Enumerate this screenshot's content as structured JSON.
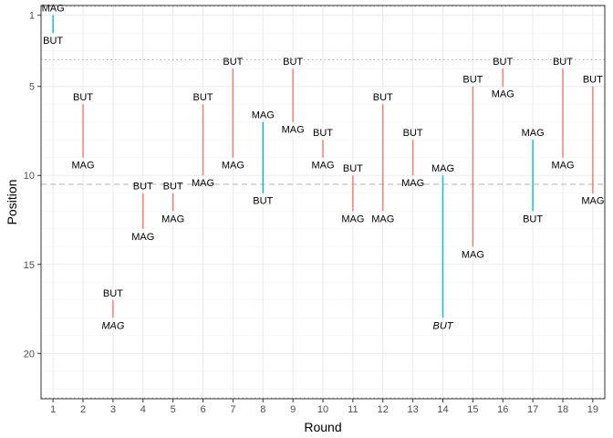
{
  "chart_data": {
    "type": "segment",
    "xlabel": "Round",
    "ylabel": "Position",
    "x_ticks": [
      "1",
      "2",
      "3",
      "4",
      "5",
      "6",
      "7",
      "8",
      "9",
      "10",
      "11",
      "12",
      "13",
      "14",
      "15",
      "16",
      "17",
      "18",
      "19"
    ],
    "y_ticks": [
      "1",
      "5",
      "10",
      "15",
      "20"
    ],
    "xlim": [
      0.6,
      19.4
    ],
    "ylim_reversed": [
      0.45,
      22.55
    ],
    "grid": true,
    "reference_lines": [
      {
        "y": 0.5,
        "style": "dotted"
      },
      {
        "y": 3.5,
        "style": "dotted"
      },
      {
        "y": 10.5,
        "style": "dashed"
      },
      {
        "y": 22.5,
        "style": "dotted"
      }
    ],
    "colors": {
      "red": "#F8766D",
      "teal": "#00BFC4"
    },
    "rounds": [
      {
        "round": 1,
        "but": 2,
        "mag": 1,
        "but_label": "BUT",
        "mag_label": "MAG",
        "color": "teal",
        "top": "mag"
      },
      {
        "round": 2,
        "but": 6,
        "mag": 9,
        "but_label": "BUT",
        "mag_label": "MAG",
        "color": "red",
        "top": "but"
      },
      {
        "round": 3,
        "but": 17,
        "mag": 18,
        "but_label": "BUT",
        "mag_label": "MAG",
        "color": "red",
        "top": "but",
        "mag_italic": true
      },
      {
        "round": 4,
        "but": 11,
        "mag": 13,
        "but_label": "BUT",
        "mag_label": "MAG",
        "color": "red",
        "top": "but"
      },
      {
        "round": 5,
        "but": 11,
        "mag": 12,
        "but_label": "BUT",
        "mag_label": "MAG",
        "color": "red",
        "top": "but"
      },
      {
        "round": 6,
        "but": 6,
        "mag": 10,
        "but_label": "BUT",
        "mag_label": "MAG",
        "color": "red",
        "top": "but"
      },
      {
        "round": 7,
        "but": 4,
        "mag": 9,
        "but_label": "BUT",
        "mag_label": "MAG",
        "color": "red",
        "top": "but"
      },
      {
        "round": 8,
        "but": 11,
        "mag": 7,
        "but_label": "BUT",
        "mag_label": "MAG",
        "color": "teal",
        "top": "mag"
      },
      {
        "round": 9,
        "but": 4,
        "mag": 7,
        "but_label": "BUT",
        "mag_label": "MAG",
        "color": "red",
        "top": "but"
      },
      {
        "round": 10,
        "but": 8,
        "mag": 9,
        "but_label": "BUT",
        "mag_label": "MAG",
        "color": "red",
        "top": "but"
      },
      {
        "round": 11,
        "but": 10,
        "mag": 12,
        "but_label": "BUT",
        "mag_label": "MAG",
        "color": "red",
        "top": "but"
      },
      {
        "round": 12,
        "but": 6,
        "mag": 12,
        "but_label": "BUT",
        "mag_label": "MAG",
        "color": "red",
        "top": "but"
      },
      {
        "round": 13,
        "but": 8,
        "mag": 10,
        "but_label": "BUT",
        "mag_label": "MAG",
        "color": "red",
        "top": "but"
      },
      {
        "round": 14,
        "but": 18,
        "mag": 10,
        "but_label": "BUT",
        "mag_label": "MAG",
        "color": "teal",
        "top": "mag",
        "but_italic": true
      },
      {
        "round": 15,
        "but": 5,
        "mag": 14,
        "but_label": "BUT",
        "mag_label": "MAG",
        "color": "red",
        "top": "but"
      },
      {
        "round": 16,
        "but": 4,
        "mag": 5,
        "but_label": "BUT",
        "mag_label": "MAG",
        "color": "red",
        "top": "but"
      },
      {
        "round": 17,
        "but": 12,
        "mag": 8,
        "but_label": "BUT",
        "mag_label": "MAG",
        "color": "teal",
        "top": "mag"
      },
      {
        "round": 18,
        "but": 4,
        "mag": 9,
        "but_label": "BUT",
        "mag_label": "MAG",
        "color": "red",
        "top": "but"
      },
      {
        "round": 19,
        "but": 5,
        "mag": 11,
        "but_label": "BUT",
        "mag_label": "MAG",
        "color": "red",
        "top": "but"
      }
    ]
  }
}
